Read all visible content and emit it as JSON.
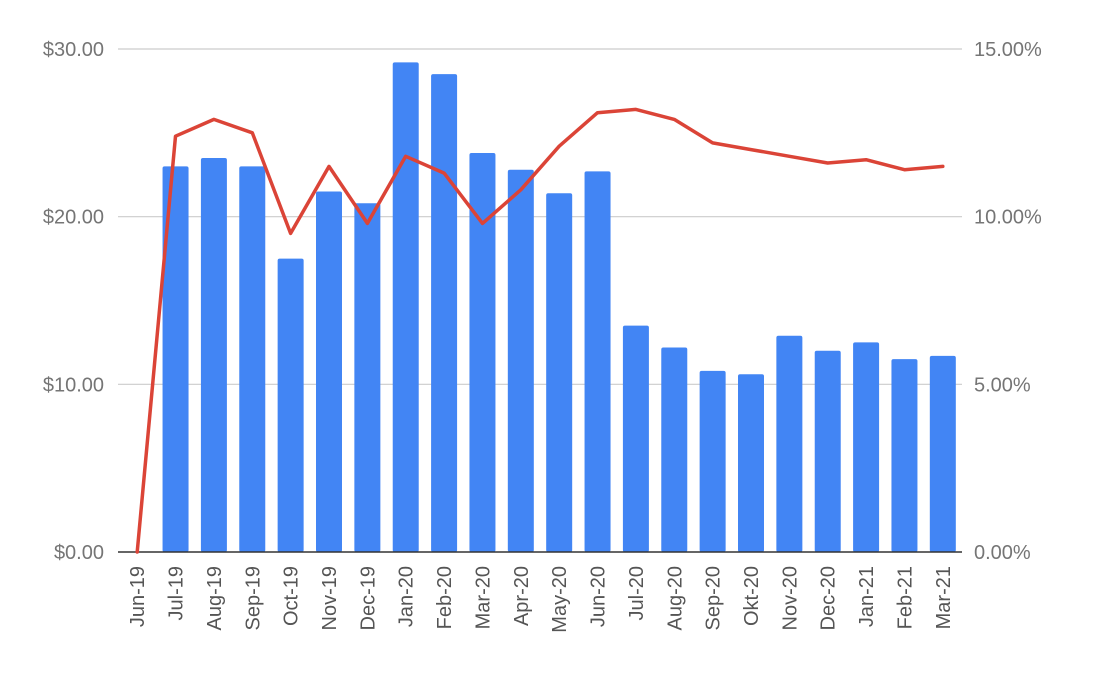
{
  "chart_data": {
    "type": "bar",
    "title": "",
    "categories": [
      "Jun-19",
      "Jul-19",
      "Aug-19",
      "Sep-19",
      "Oct-19",
      "Nov-19",
      "Dec-19",
      "Jan-20",
      "Feb-20",
      "Mar-20",
      "Apr-20",
      "May-20",
      "Jun-20",
      "Jul-20",
      "Aug-20",
      "Sep-20",
      "Okt-20",
      "Nov-20",
      "Dec-20",
      "Jan-21",
      "Feb-21",
      "Mar-21"
    ],
    "series": [
      {
        "type": "bar",
        "axis": "left",
        "color": "#4285F4",
        "values": [
          0,
          23.0,
          23.5,
          23.0,
          17.5,
          21.5,
          20.8,
          29.2,
          28.5,
          23.8,
          22.8,
          21.4,
          22.7,
          13.5,
          12.2,
          10.8,
          10.6,
          12.9,
          12.0,
          12.5,
          11.5,
          11.7
        ]
      },
      {
        "type": "line",
        "axis": "right",
        "color": "#DB4437",
        "values": [
          0,
          12.4,
          12.9,
          12.5,
          9.5,
          11.5,
          9.8,
          11.8,
          11.3,
          9.8,
          10.8,
          12.1,
          13.1,
          13.2,
          12.9,
          12.2,
          12.0,
          11.8,
          11.6,
          11.7,
          11.4,
          11.5
        ]
      }
    ],
    "y_left": {
      "ylim": [
        0,
        30
      ],
      "ticks": [
        0,
        10,
        20,
        30
      ],
      "tick_labels": [
        "$0.00",
        "$10.00",
        "$20.00",
        "$30.00"
      ]
    },
    "y_right": {
      "ylim": [
        0,
        15
      ],
      "ticks": [
        0,
        5,
        10,
        15
      ],
      "tick_labels": [
        "0.00%",
        "5.00%",
        "10.00%",
        "15.00%"
      ]
    },
    "grid": true,
    "legend": "none",
    "gridline_color": "#CCCCCC",
    "axis_color": "#333333"
  }
}
